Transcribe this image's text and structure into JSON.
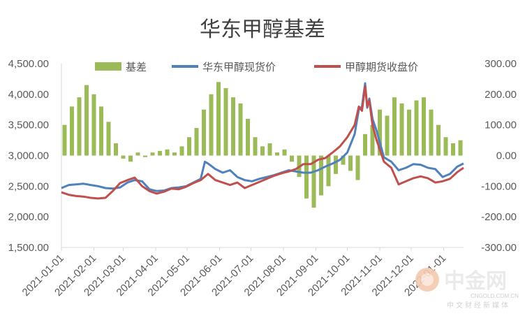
{
  "chart_data": {
    "type": "bar+line",
    "title": "华东甲醇基差",
    "y_left": {
      "ticks": [
        "4,500.00",
        "4,000.00",
        "3,500.00",
        "3,000.00",
        "2,500.00",
        "2,000.00",
        "1,500.00"
      ],
      "min": 1500,
      "max": 4500
    },
    "y_right": {
      "ticks": [
        "300.00",
        "200.00",
        "100.00",
        "0.00",
        "-100.00",
        "-200.00",
        "-300.00"
      ],
      "min": -300,
      "max": 300
    },
    "x_ticks": [
      "2021-01-01",
      "2021-02-01",
      "2021-03-01",
      "2021-04-01",
      "2021-05-01",
      "2021-06-01",
      "2021-07-01",
      "2021-08-01",
      "2021-09-01",
      "2021-10-01",
      "2021-11-01",
      "2021-12-01",
      "2022-01-01"
    ],
    "x_end": "2022-01-20",
    "legend": [
      "基差",
      "华东甲醇现货价",
      "甲醇期货收盘价"
    ],
    "colors": {
      "basis": "#9bbb59",
      "spot": "#4f81bd",
      "futures": "#c0504d",
      "axis": "#d9d9d9"
    },
    "spot": [
      [
        "2021-01-01",
        2470
      ],
      [
        "2021-01-08",
        2520
      ],
      [
        "2021-01-15",
        2530
      ],
      [
        "2021-01-22",
        2540
      ],
      [
        "2021-01-29",
        2520
      ],
      [
        "2021-02-05",
        2500
      ],
      [
        "2021-02-12",
        2470
      ],
      [
        "2021-02-19",
        2460
      ],
      [
        "2021-02-26",
        2480
      ],
      [
        "2021-03-05",
        2560
      ],
      [
        "2021-03-12",
        2600
      ],
      [
        "2021-03-19",
        2580
      ],
      [
        "2021-03-26",
        2450
      ],
      [
        "2021-04-02",
        2420
      ],
      [
        "2021-04-09",
        2430
      ],
      [
        "2021-04-16",
        2470
      ],
      [
        "2021-04-23",
        2480
      ],
      [
        "2021-04-30",
        2500
      ],
      [
        "2021-05-07",
        2560
      ],
      [
        "2021-05-14",
        2620
      ],
      [
        "2021-05-18",
        2900
      ],
      [
        "2021-05-21",
        2870
      ],
      [
        "2021-05-28",
        2780
      ],
      [
        "2021-06-04",
        2720
      ],
      [
        "2021-06-11",
        2760
      ],
      [
        "2021-06-18",
        2650
      ],
      [
        "2021-06-25",
        2600
      ],
      [
        "2021-07-02",
        2580
      ],
      [
        "2021-07-09",
        2620
      ],
      [
        "2021-07-16",
        2650
      ],
      [
        "2021-07-23",
        2680
      ],
      [
        "2021-07-30",
        2720
      ],
      [
        "2021-08-06",
        2760
      ],
      [
        "2021-08-13",
        2740
      ],
      [
        "2021-08-20",
        2720
      ],
      [
        "2021-08-27",
        2720
      ],
      [
        "2021-09-03",
        2760
      ],
      [
        "2021-09-10",
        2820
      ],
      [
        "2021-09-17",
        2870
      ],
      [
        "2021-09-24",
        2930
      ],
      [
        "2021-10-01",
        3050
      ],
      [
        "2021-10-08",
        3350
      ],
      [
        "2021-10-12",
        3750
      ],
      [
        "2021-10-15",
        3800
      ],
      [
        "2021-10-18",
        4180
      ],
      [
        "2021-10-20",
        3780
      ],
      [
        "2021-10-22",
        3930
      ],
      [
        "2021-10-25",
        3600
      ],
      [
        "2021-10-29",
        3400
      ],
      [
        "2021-11-05",
        2970
      ],
      [
        "2021-11-12",
        2900
      ],
      [
        "2021-11-19",
        2760
      ],
      [
        "2021-11-26",
        2800
      ],
      [
        "2021-12-03",
        2860
      ],
      [
        "2021-12-10",
        2850
      ],
      [
        "2021-12-17",
        2800
      ],
      [
        "2021-12-24",
        2780
      ],
      [
        "2021-12-31",
        2650
      ],
      [
        "2022-01-07",
        2700
      ],
      [
        "2022-01-14",
        2820
      ],
      [
        "2022-01-20",
        2870
      ]
    ],
    "futures": [
      [
        "2021-01-01",
        2400
      ],
      [
        "2021-01-08",
        2360
      ],
      [
        "2021-01-15",
        2340
      ],
      [
        "2021-01-22",
        2330
      ],
      [
        "2021-01-29",
        2310
      ],
      [
        "2021-02-05",
        2300
      ],
      [
        "2021-02-12",
        2310
      ],
      [
        "2021-02-19",
        2420
      ],
      [
        "2021-02-26",
        2550
      ],
      [
        "2021-03-05",
        2600
      ],
      [
        "2021-03-12",
        2640
      ],
      [
        "2021-03-19",
        2500
      ],
      [
        "2021-03-26",
        2420
      ],
      [
        "2021-04-02",
        2380
      ],
      [
        "2021-04-09",
        2410
      ],
      [
        "2021-04-16",
        2460
      ],
      [
        "2021-04-23",
        2450
      ],
      [
        "2021-04-30",
        2490
      ],
      [
        "2021-05-07",
        2550
      ],
      [
        "2021-05-14",
        2600
      ],
      [
        "2021-05-21",
        2700
      ],
      [
        "2021-05-28",
        2600
      ],
      [
        "2021-06-04",
        2560
      ],
      [
        "2021-06-11",
        2520
      ],
      [
        "2021-06-18",
        2560
      ],
      [
        "2021-06-25",
        2470
      ],
      [
        "2021-07-02",
        2520
      ],
      [
        "2021-07-09",
        2570
      ],
      [
        "2021-07-16",
        2620
      ],
      [
        "2021-07-23",
        2670
      ],
      [
        "2021-07-30",
        2710
      ],
      [
        "2021-08-06",
        2740
      ],
      [
        "2021-08-13",
        2780
      ],
      [
        "2021-08-20",
        2860
      ],
      [
        "2021-08-27",
        2860
      ],
      [
        "2021-09-03",
        2930
      ],
      [
        "2021-09-10",
        2960
      ],
      [
        "2021-09-17",
        3050
      ],
      [
        "2021-09-24",
        3150
      ],
      [
        "2021-10-01",
        3300
      ],
      [
        "2021-10-08",
        3500
      ],
      [
        "2021-10-12",
        3800
      ],
      [
        "2021-10-15",
        3730
      ],
      [
        "2021-10-18",
        4130
      ],
      [
        "2021-10-20",
        3800
      ],
      [
        "2021-10-22",
        3900
      ],
      [
        "2021-10-25",
        3500
      ],
      [
        "2021-10-29",
        3250
      ],
      [
        "2021-11-05",
        2900
      ],
      [
        "2021-11-12",
        2800
      ],
      [
        "2021-11-19",
        2530
      ],
      [
        "2021-11-26",
        2580
      ],
      [
        "2021-12-03",
        2630
      ],
      [
        "2021-12-10",
        2660
      ],
      [
        "2021-12-17",
        2630
      ],
      [
        "2021-12-24",
        2560
      ],
      [
        "2021-12-31",
        2580
      ],
      [
        "2022-01-07",
        2620
      ],
      [
        "2022-01-14",
        2730
      ],
      [
        "2022-01-20",
        2800
      ]
    ],
    "basis": [
      [
        "2021-01-04",
        100
      ],
      [
        "2021-01-11",
        160
      ],
      [
        "2021-01-18",
        190
      ],
      [
        "2021-01-25",
        230
      ],
      [
        "2021-02-01",
        200
      ],
      [
        "2021-02-08",
        160
      ],
      [
        "2021-02-15",
        110
      ],
      [
        "2021-02-22",
        40
      ],
      [
        "2021-03-01",
        -10
      ],
      [
        "2021-03-08",
        -20
      ],
      [
        "2021-03-15",
        10
      ],
      [
        "2021-03-22",
        -5
      ],
      [
        "2021-03-29",
        10
      ],
      [
        "2021-04-05",
        15
      ],
      [
        "2021-04-12",
        20
      ],
      [
        "2021-04-19",
        10
      ],
      [
        "2021-04-26",
        30
      ],
      [
        "2021-05-03",
        60
      ],
      [
        "2021-05-10",
        90
      ],
      [
        "2021-05-17",
        150
      ],
      [
        "2021-05-24",
        200
      ],
      [
        "2021-05-31",
        240
      ],
      [
        "2021-06-07",
        220
      ],
      [
        "2021-06-14",
        190
      ],
      [
        "2021-06-21",
        170
      ],
      [
        "2021-06-28",
        120
      ],
      [
        "2021-07-05",
        60
      ],
      [
        "2021-07-12",
        30
      ],
      [
        "2021-07-19",
        40
      ],
      [
        "2021-07-26",
        10
      ],
      [
        "2021-08-02",
        20
      ],
      [
        "2021-08-09",
        -20
      ],
      [
        "2021-08-16",
        -70
      ],
      [
        "2021-08-23",
        -140
      ],
      [
        "2021-08-30",
        -170
      ],
      [
        "2021-09-06",
        -130
      ],
      [
        "2021-09-13",
        -100
      ],
      [
        "2021-09-20",
        -60
      ],
      [
        "2021-09-27",
        -30
      ],
      [
        "2021-10-04",
        -50
      ],
      [
        "2021-10-11",
        -80
      ],
      [
        "2021-10-18",
        70
      ],
      [
        "2021-10-25",
        100
      ],
      [
        "2021-11-01",
        150
      ],
      [
        "2021-11-08",
        130
      ],
      [
        "2021-11-15",
        190
      ],
      [
        "2021-11-22",
        170
      ],
      [
        "2021-11-29",
        150
      ],
      [
        "2021-12-06",
        180
      ],
      [
        "2021-12-13",
        190
      ],
      [
        "2021-12-20",
        150
      ],
      [
        "2021-12-27",
        100
      ],
      [
        "2022-01-03",
        60
      ],
      [
        "2022-01-10",
        40
      ],
      [
        "2022-01-17",
        50
      ]
    ]
  },
  "watermark": {
    "brand": "中金网",
    "url": "CNGOLD.COM.CN",
    "slogan": "中文财经新媒体"
  }
}
